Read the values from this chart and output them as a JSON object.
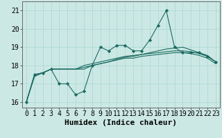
{
  "x": [
    0,
    1,
    2,
    3,
    4,
    5,
    6,
    7,
    8,
    9,
    10,
    11,
    12,
    13,
    14,
    15,
    16,
    17,
    18,
    19,
    20,
    21,
    22,
    23
  ],
  "line1": [
    16.0,
    17.5,
    17.6,
    17.8,
    17.0,
    17.0,
    16.4,
    16.6,
    18.0,
    19.0,
    18.8,
    19.1,
    19.1,
    18.8,
    18.8,
    19.4,
    20.2,
    21.0,
    19.0,
    18.7,
    18.7,
    18.7,
    18.5,
    18.2
  ],
  "line2": [
    16.0,
    17.5,
    17.6,
    17.8,
    17.8,
    17.8,
    17.8,
    17.8,
    18.0,
    18.1,
    18.2,
    18.35,
    18.45,
    18.5,
    18.6,
    18.7,
    18.8,
    18.9,
    18.95,
    19.0,
    18.85,
    18.7,
    18.55,
    18.2
  ],
  "line3": [
    16.0,
    17.5,
    17.6,
    17.8,
    17.8,
    17.8,
    17.8,
    18.0,
    18.1,
    18.2,
    18.3,
    18.4,
    18.5,
    18.55,
    18.6,
    18.65,
    18.7,
    18.75,
    18.8,
    18.8,
    18.75,
    18.65,
    18.5,
    18.2
  ],
  "line4": [
    16.0,
    17.4,
    17.6,
    17.8,
    17.8,
    17.8,
    17.8,
    17.9,
    18.0,
    18.1,
    18.2,
    18.3,
    18.4,
    18.4,
    18.5,
    18.55,
    18.6,
    18.65,
    18.7,
    18.7,
    18.65,
    18.55,
    18.4,
    18.1
  ],
  "bg_color": "#cce8e4",
  "line_color": "#1a6b62",
  "grid_color": "#a8d8d0",
  "xlabel": "Humidex (Indice chaleur)",
  "ylabel_ticks": [
    16,
    17,
    18,
    19,
    20,
    21
  ],
  "xlim": [
    -0.5,
    23.5
  ],
  "ylim": [
    15.7,
    21.5
  ],
  "xlabel_fontsize": 8,
  "tick_fontsize": 7
}
